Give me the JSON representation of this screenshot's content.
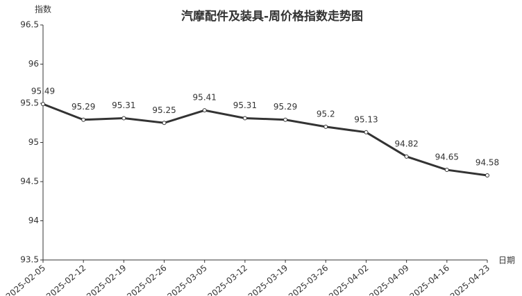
{
  "chart_data": {
    "type": "line",
    "title": "汽摩配件及装具-周价格指数走势图",
    "y_label": "指数",
    "x_label": "日期",
    "categories": [
      "2025-02-05",
      "2025-02-12",
      "2025-02-19",
      "2025-02-26",
      "2025-03-05",
      "2025-03-12",
      "2025-03-19",
      "2025-03-26",
      "2025-04-02",
      "2025-04-09",
      "2025-04-16",
      "2025-04-23"
    ],
    "values": [
      95.49,
      95.29,
      95.31,
      95.25,
      95.41,
      95.31,
      95.29,
      95.2,
      95.13,
      94.82,
      94.65,
      94.58
    ],
    "color": "#333333",
    "ylim": [
      93.5,
      96.5
    ],
    "yticks": [
      93.5,
      94,
      94.5,
      95,
      95.5,
      96,
      96.5
    ],
    "grid": false
  }
}
